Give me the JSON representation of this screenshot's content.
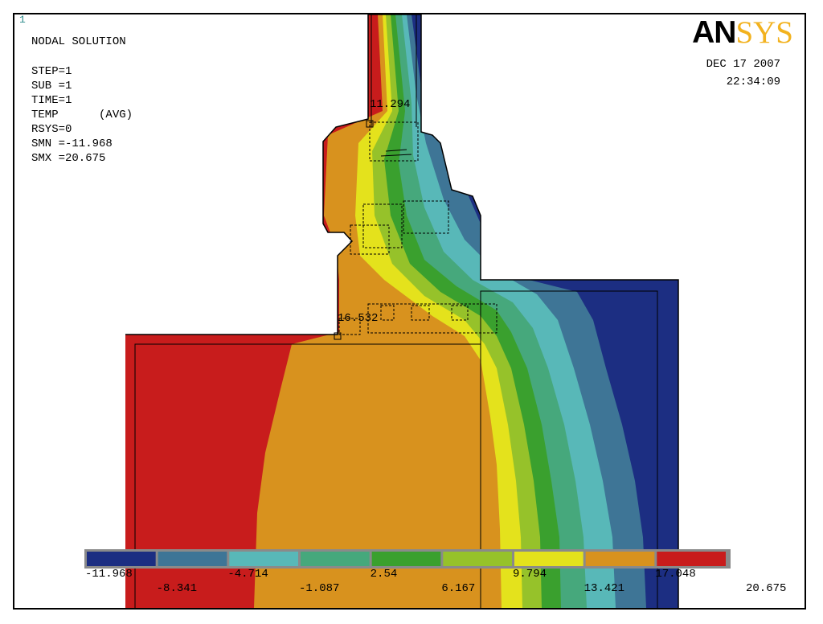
{
  "window": {
    "number": "1",
    "title": "NODAL SOLUTION"
  },
  "solution_info": [
    "STEP=1",
    "SUB =1",
    "TIME=1",
    "TEMP      (AVG)",
    "RSYS=0",
    "SMN =-11.968",
    "SMX =20.675"
  ],
  "logo": {
    "part1": "AN",
    "part2": "SYS"
  },
  "timestamp": {
    "date": "DEC 17 2007",
    "time": "22:34:09"
  },
  "node_labels": [
    "11.294",
    "16.532"
  ],
  "legend": {
    "values": [
      "-11.968",
      "-8.341",
      "-4.714",
      "-1.087",
      "2.54",
      "6.167",
      "9.794",
      "13.421",
      "17.048",
      "20.675"
    ],
    "colors": [
      "#1c2e82",
      "#3e7596",
      "#58b8b8",
      "#46a87c",
      "#3aa02e",
      "#96c22a",
      "#e4e21c",
      "#d8921e",
      "#c81c1c"
    ]
  },
  "colors": {
    "bg": "#ffffff",
    "band_red": "#c81c1c",
    "band_orange": "#d8921e",
    "band_yellow": "#e4e21c",
    "band_lime": "#96c22a",
    "band_green": "#3aa02e",
    "band_seagreen": "#46a87c",
    "band_teal": "#58b8b8",
    "band_steel": "#3e7596",
    "band_navy": "#1c2e82"
  }
}
